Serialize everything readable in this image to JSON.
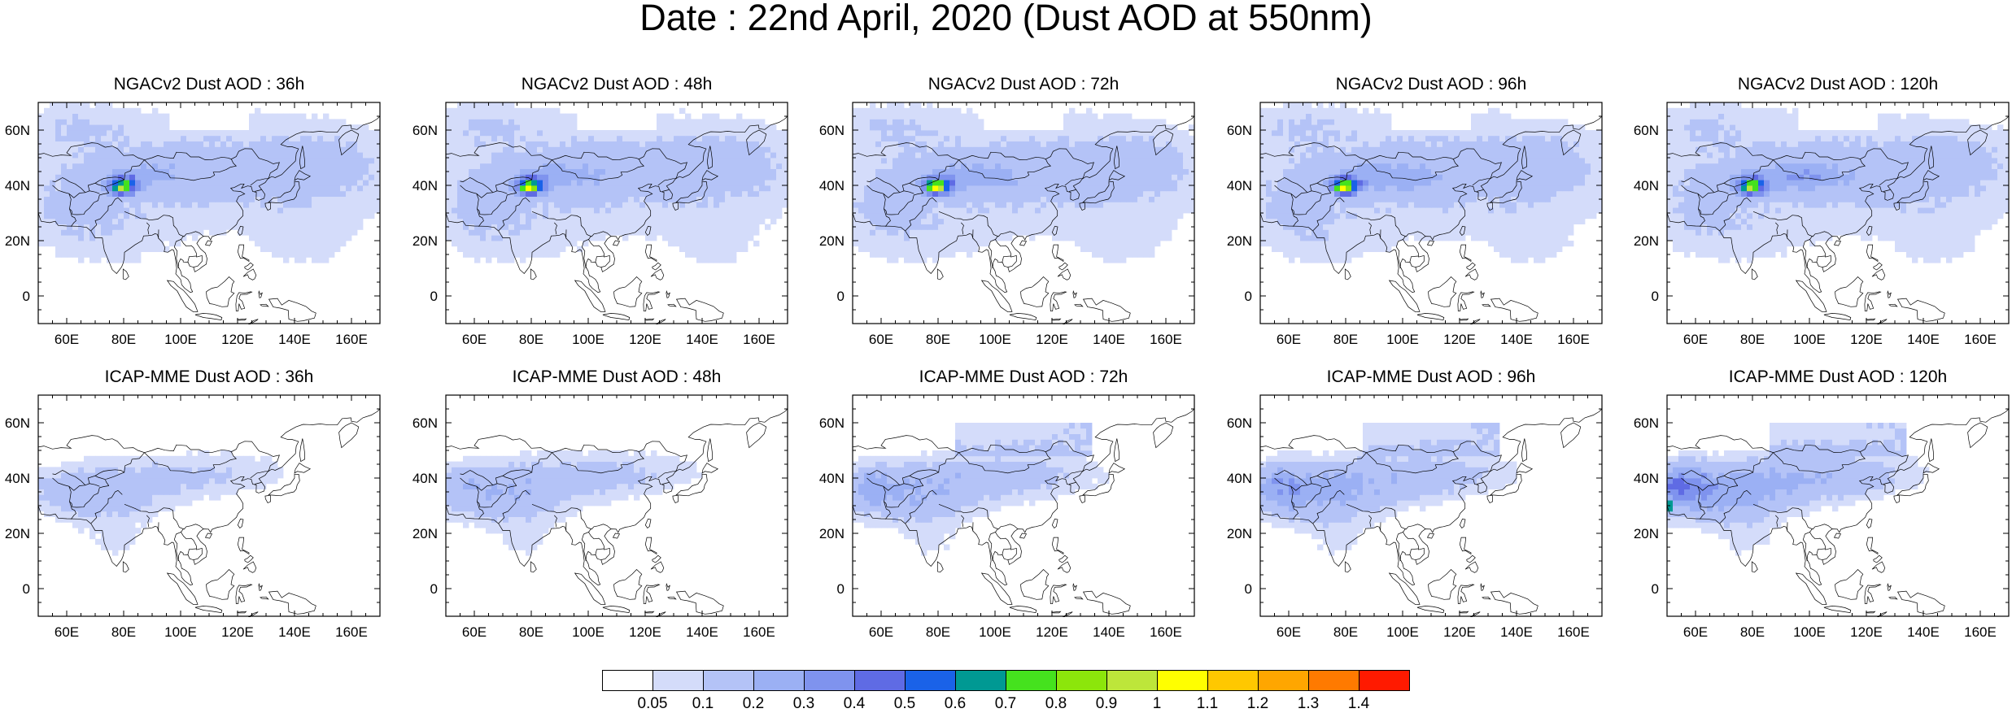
{
  "title": "Date : 22nd April, 2020 (Dust AOD at 550nm)",
  "top_row": {
    "panels": [
      {
        "title": "NGACv2 Dust AOD : 36h"
      },
      {
        "title": "NGACv2 Dust AOD : 48h"
      },
      {
        "title": "NGACv2 Dust AOD : 72h"
      },
      {
        "title": "NGACv2 Dust AOD : 96h"
      },
      {
        "title": "NGACv2 Dust AOD : 120h"
      }
    ]
  },
  "bottom_row": {
    "panels": [
      {
        "title": "ICAP-MME Dust AOD : 36h"
      },
      {
        "title": "ICAP-MME Dust AOD : 48h"
      },
      {
        "title": "ICAP-MME Dust AOD : 72h"
      },
      {
        "title": "ICAP-MME Dust AOD : 96h"
      },
      {
        "title": "ICAP-MME Dust AOD : 120h"
      }
    ]
  },
  "map_axes": {
    "lon_range": [
      50,
      170
    ],
    "lat_range": [
      -10,
      70
    ],
    "lon_ticks": [
      "60E",
      "80E",
      "100E",
      "120E",
      "140E",
      "160E"
    ],
    "lon_tick_values": [
      60,
      80,
      100,
      120,
      140,
      160
    ],
    "lat_ticks": [
      "60N",
      "40N",
      "20N",
      "0"
    ],
    "lat_tick_values": [
      60,
      40,
      20,
      0
    ]
  },
  "colorbar": {
    "labels": [
      "0.05",
      "0.1",
      "0.2",
      "0.3",
      "0.4",
      "0.5",
      "0.6",
      "0.7",
      "0.8",
      "0.9",
      "1",
      "1.1",
      "1.2",
      "1.3",
      "1.4"
    ],
    "colors": [
      "#ffffff",
      "#d4dcfa",
      "#b4c3f7",
      "#9bb0f4",
      "#7f93ee",
      "#5f6be4",
      "#1a62e8",
      "#009993",
      "#45e21e",
      "#8ce60b",
      "#bde63a",
      "#ffff00",
      "#ffc800",
      "#ffa600",
      "#ff7a00",
      "#ff1a00"
    ]
  }
}
